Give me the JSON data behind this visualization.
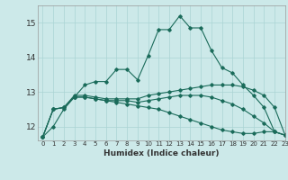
{
  "title": "",
  "xlabel": "Humidex (Indice chaleur)",
  "ylabel": "",
  "background_color": "#cce9e9",
  "grid_color": "#aad4d4",
  "line_color": "#1a6b5a",
  "xlim": [
    -0.5,
    23
  ],
  "ylim": [
    11.6,
    15.5
  ],
  "yticks": [
    12,
    13,
    14,
    15
  ],
  "xticks": [
    0,
    1,
    2,
    3,
    4,
    5,
    6,
    7,
    8,
    9,
    10,
    11,
    12,
    13,
    14,
    15,
    16,
    17,
    18,
    19,
    20,
    21,
    22,
    23
  ],
  "series": [
    [
      11.7,
      12.0,
      12.5,
      12.85,
      13.2,
      13.3,
      13.3,
      13.65,
      13.65,
      13.35,
      14.05,
      14.8,
      14.8,
      15.2,
      14.85,
      14.85,
      14.2,
      13.7,
      13.55,
      13.2,
      12.9,
      12.55,
      11.85,
      11.75
    ],
    [
      11.7,
      12.5,
      12.55,
      12.9,
      12.9,
      12.85,
      12.8,
      12.8,
      12.8,
      12.8,
      12.9,
      12.95,
      13.0,
      13.05,
      13.1,
      13.15,
      13.2,
      13.2,
      13.2,
      13.15,
      13.05,
      12.9,
      12.55,
      11.75
    ],
    [
      11.7,
      12.5,
      12.55,
      12.85,
      12.85,
      12.8,
      12.75,
      12.75,
      12.75,
      12.7,
      12.75,
      12.8,
      12.85,
      12.9,
      12.9,
      12.9,
      12.85,
      12.75,
      12.65,
      12.5,
      12.3,
      12.1,
      11.85,
      11.75
    ],
    [
      11.7,
      12.5,
      12.55,
      12.85,
      12.85,
      12.8,
      12.75,
      12.7,
      12.65,
      12.6,
      12.55,
      12.5,
      12.4,
      12.3,
      12.2,
      12.1,
      12.0,
      11.9,
      11.85,
      11.8,
      11.8,
      11.85,
      11.85,
      11.75
    ]
  ]
}
